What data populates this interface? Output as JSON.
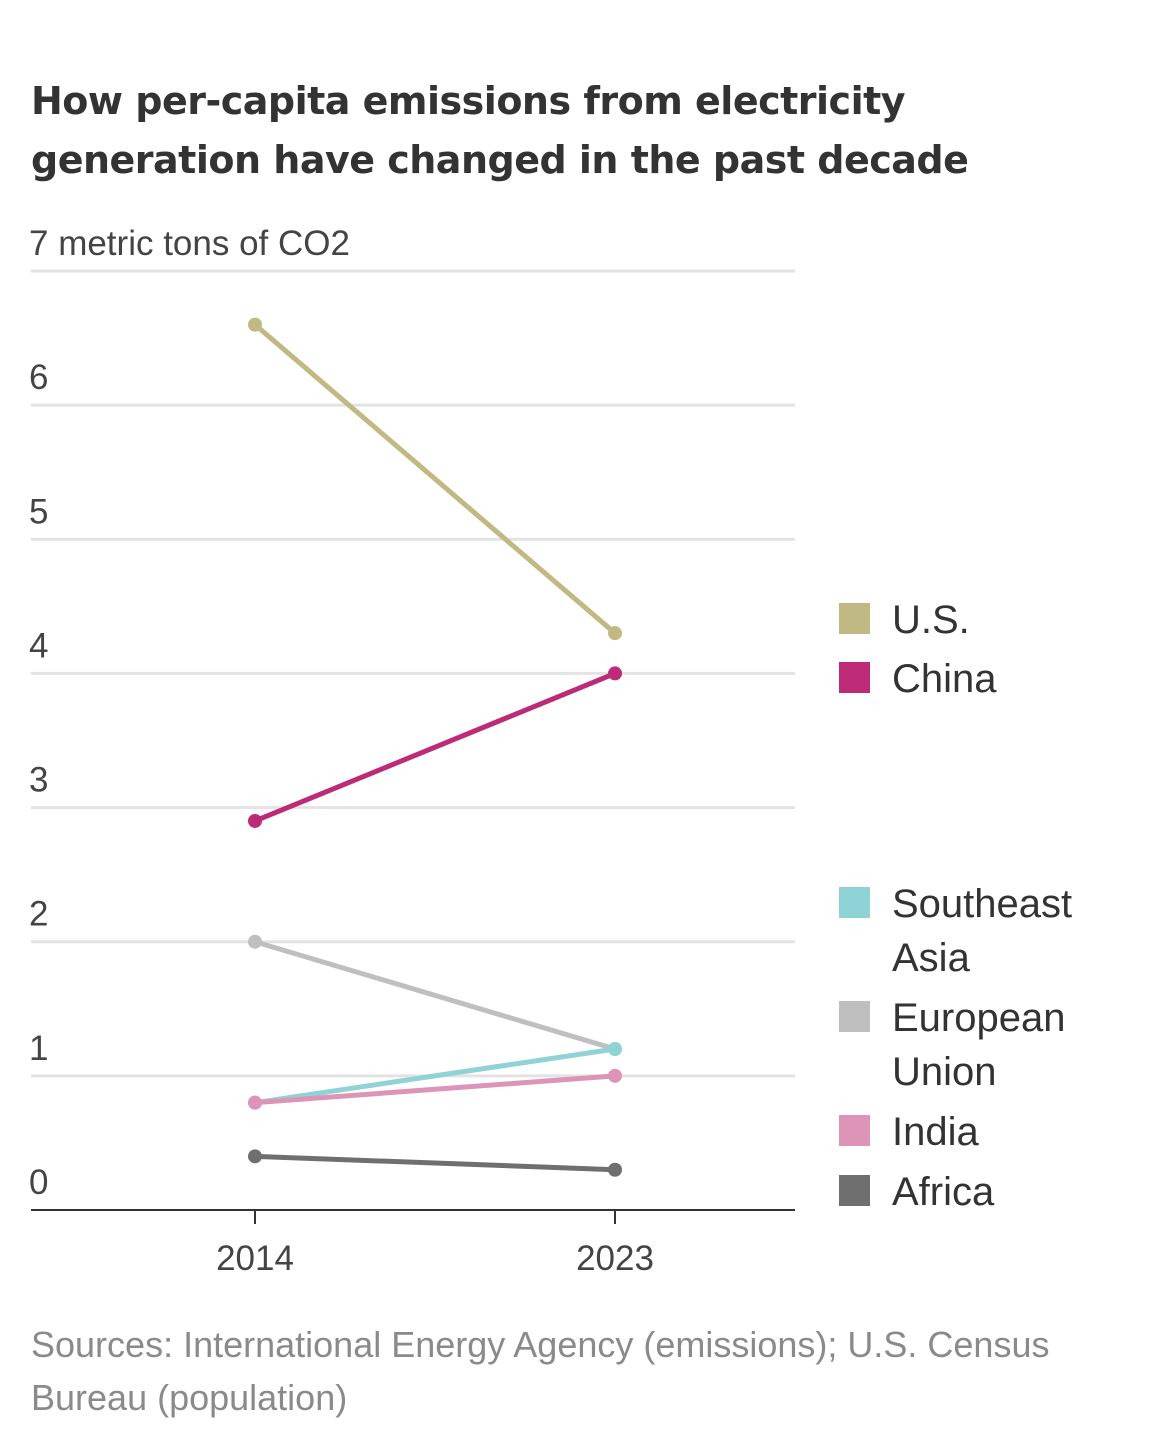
{
  "title": "How per-capita emissions from electricity generation have changed in the past decade",
  "source": "Sources: International Energy Agency (emissions); U.S. Census Bureau (population)",
  "chart_data": {
    "type": "line",
    "title": "How per-capita emissions from electricity generation have changed in the past decade",
    "x": [
      "2014",
      "2023"
    ],
    "ylim": [
      0,
      7
    ],
    "yticks": [
      0,
      1,
      2,
      3,
      4,
      5,
      6,
      7
    ],
    "ytick_labels": [
      "0",
      "1",
      "2",
      "3",
      "4",
      "5",
      "6",
      "7 metric tons of CO2"
    ],
    "grid": true,
    "legend_position": "right",
    "series": [
      {
        "name": "U.S.",
        "values": [
          6.6,
          4.3
        ],
        "color": "#c1b983"
      },
      {
        "name": "China",
        "values": [
          2.9,
          4.0
        ],
        "color": "#bd2a77"
      },
      {
        "name": "Southeast Asia",
        "values": [
          0.8,
          1.2
        ],
        "color": "#8fd3d6"
      },
      {
        "name": "European Union",
        "values": [
          2.0,
          1.2
        ],
        "color": "#bfbfbf"
      },
      {
        "name": "India",
        "values": [
          0.8,
          1.0
        ],
        "color": "#dd94b6"
      },
      {
        "name": "Africa",
        "values": [
          0.4,
          0.3
        ],
        "color": "#6f6f6f"
      }
    ],
    "legend": [
      {
        "name": "U.S.",
        "lines": [
          "U.S."
        ],
        "color": "#c1b983"
      },
      {
        "name": "China",
        "lines": [
          "China"
        ],
        "color": "#bd2a77"
      },
      {
        "name": "Southeast Asia",
        "lines": [
          "Southeast",
          "Asia"
        ],
        "color": "#8fd3d6"
      },
      {
        "name": "European Union",
        "lines": [
          "European",
          "Union"
        ],
        "color": "#bfbfbf"
      },
      {
        "name": "India",
        "lines": [
          "India"
        ],
        "color": "#dd94b6"
      },
      {
        "name": "Africa",
        "lines": [
          "Africa"
        ],
        "color": "#6f6f6f"
      }
    ]
  }
}
